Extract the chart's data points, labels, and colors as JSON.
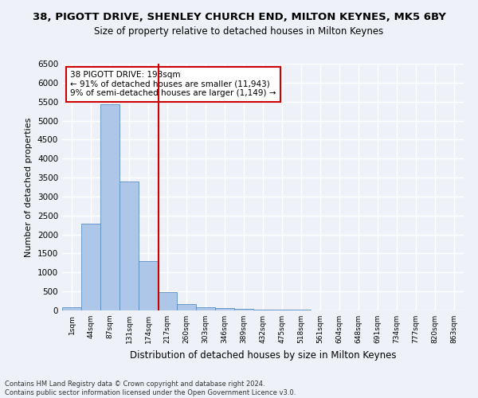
{
  "title": "38, PIGOTT DRIVE, SHENLEY CHURCH END, MILTON KEYNES, MK5 6BY",
  "subtitle": "Size of property relative to detached houses in Milton Keynes",
  "xlabel": "Distribution of detached houses by size in Milton Keynes",
  "ylabel": "Number of detached properties",
  "bar_labels": [
    "1sqm",
    "44sqm",
    "87sqm",
    "131sqm",
    "174sqm",
    "217sqm",
    "260sqm",
    "303sqm",
    "346sqm",
    "389sqm",
    "432sqm",
    "475sqm",
    "518sqm",
    "561sqm",
    "604sqm",
    "648sqm",
    "691sqm",
    "734sqm",
    "777sqm",
    "820sqm",
    "863sqm"
  ],
  "bar_values": [
    75,
    2280,
    5430,
    3390,
    1310,
    480,
    165,
    90,
    55,
    40,
    30,
    20,
    15,
    10,
    8,
    6,
    5,
    4,
    3,
    2,
    2
  ],
  "bar_color": "#aec6e8",
  "bar_edge_color": "#5a8fc2",
  "ylim": [
    0,
    6500
  ],
  "yticks": [
    0,
    500,
    1000,
    1500,
    2000,
    2500,
    3000,
    3500,
    4000,
    4500,
    5000,
    5500,
    6000,
    6500
  ],
  "property_label": "38 PIGOTT DRIVE: 198sqm",
  "annotation_line1": "← 91% of detached houses are smaller (11,943)",
  "annotation_line2": "9% of semi-detached houses are larger (1,149) →",
  "vline_color": "#cc0000",
  "annotation_box_edge": "#cc0000",
  "footer1": "Contains HM Land Registry data © Crown copyright and database right 2024.",
  "footer2": "Contains public sector information licensed under the Open Government Licence v3.0.",
  "bg_color": "#eef2f8",
  "grid_color": "#ffffff"
}
